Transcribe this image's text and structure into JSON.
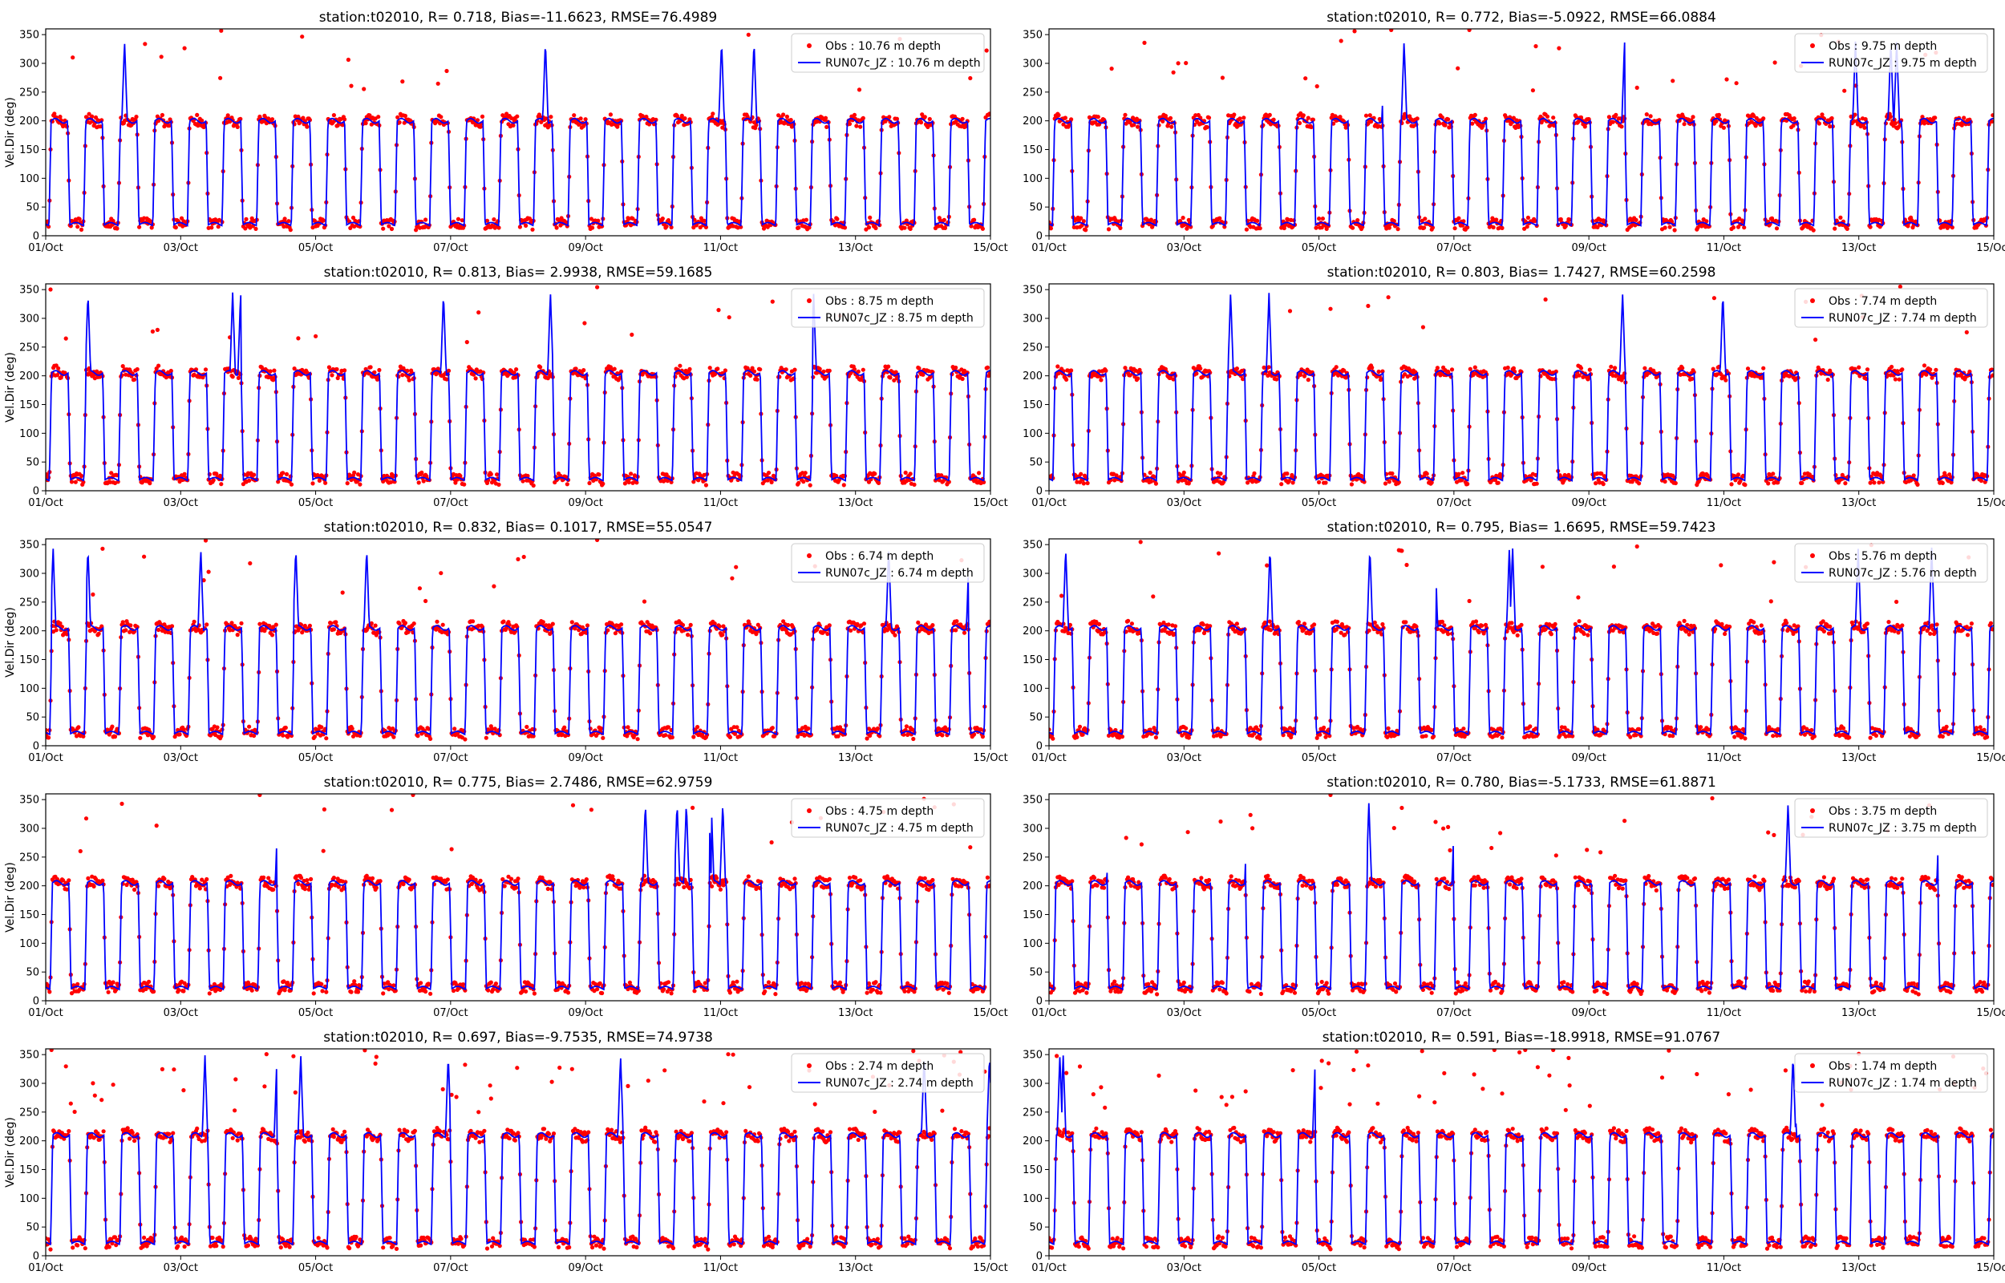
{
  "colors": {
    "obs": "#ff0000",
    "model": "#0000ff"
  },
  "chart_data": [
    {
      "type": "scatter+line",
      "title": "station:t02010, R= 0.718, Bias=-11.6623, RMSE=76.4989",
      "ylabel": "Vel.Dir (deg)",
      "xlabel": "",
      "ylim": [
        0,
        360
      ],
      "xlim": [
        "01/Oct",
        "15/Oct"
      ],
      "x_tick_labels": [
        "01/Oct",
        "03/Oct",
        "05/Oct",
        "07/Oct",
        "09/Oct",
        "11/Oct",
        "13/Oct",
        "15/Oct"
      ],
      "y_tick_labels": [
        "0",
        "50",
        "100",
        "150",
        "200",
        "250",
        "300",
        "350"
      ],
      "legend_position": "top-right",
      "series": [
        {
          "name": "Obs : 10.76 m depth",
          "kind": "markers"
        },
        {
          "name": "RUN07c_JZ : 10.76 m depth",
          "kind": "line"
        }
      ],
      "flood_direction_deg": 200,
      "ebb_direction_deg": 20
    },
    {
      "type": "scatter+line",
      "title": "station:t02010, R= 0.772, Bias=-5.0922, RMSE=66.0884",
      "ylabel": "",
      "xlabel": "",
      "ylim": [
        0,
        360
      ],
      "xlim": [
        "01/Oct",
        "15/Oct"
      ],
      "x_tick_labels": [
        "01/Oct",
        "03/Oct",
        "05/Oct",
        "07/Oct",
        "09/Oct",
        "11/Oct",
        "13/Oct",
        "15/Oct"
      ],
      "y_tick_labels": [
        "0",
        "50",
        "100",
        "150",
        "200",
        "250",
        "300",
        "350"
      ],
      "legend_position": "top-right",
      "series": [
        {
          "name": "Obs : 9.75 m depth",
          "kind": "markers"
        },
        {
          "name": "RUN07c_JZ : 9.75 m depth",
          "kind": "line"
        }
      ],
      "flood_direction_deg": 200,
      "ebb_direction_deg": 20
    },
    {
      "type": "scatter+line",
      "title": "station:t02010, R= 0.813, Bias= 2.9938, RMSE=59.1685",
      "ylabel": "Vel.Dir (deg)",
      "xlabel": "",
      "ylim": [
        0,
        360
      ],
      "xlim": [
        "01/Oct",
        "15/Oct"
      ],
      "x_tick_labels": [
        "01/Oct",
        "03/Oct",
        "05/Oct",
        "07/Oct",
        "09/Oct",
        "11/Oct",
        "13/Oct",
        "15/Oct"
      ],
      "y_tick_labels": [
        "0",
        "50",
        "100",
        "150",
        "200",
        "250",
        "300",
        "350"
      ],
      "legend_position": "top-right",
      "series": [
        {
          "name": "Obs : 8.75 m depth",
          "kind": "markers"
        },
        {
          "name": "RUN07c_JZ : 8.75 m depth",
          "kind": "line"
        }
      ],
      "flood_direction_deg": 205,
      "ebb_direction_deg": 20
    },
    {
      "type": "scatter+line",
      "title": "station:t02010, R= 0.803, Bias= 1.7427, RMSE=60.2598",
      "ylabel": "",
      "xlabel": "",
      "ylim": [
        0,
        360
      ],
      "xlim": [
        "01/Oct",
        "15/Oct"
      ],
      "x_tick_labels": [
        "01/Oct",
        "03/Oct",
        "05/Oct",
        "07/Oct",
        "09/Oct",
        "11/Oct",
        "13/Oct",
        "15/Oct"
      ],
      "y_tick_labels": [
        "0",
        "50",
        "100",
        "150",
        "200",
        "250",
        "300",
        "350"
      ],
      "legend_position": "top-right",
      "series": [
        {
          "name": "Obs : 7.74 m depth",
          "kind": "markers"
        },
        {
          "name": "RUN07c_JZ : 7.74 m depth",
          "kind": "line"
        }
      ],
      "flood_direction_deg": 205,
      "ebb_direction_deg": 20
    },
    {
      "type": "scatter+line",
      "title": "station:t02010, R= 0.832, Bias= 0.1017, RMSE=55.0547",
      "ylabel": "Vel.Dir (deg)",
      "xlabel": "",
      "ylim": [
        0,
        360
      ],
      "xlim": [
        "01/Oct",
        "15/Oct"
      ],
      "x_tick_labels": [
        "01/Oct",
        "03/Oct",
        "05/Oct",
        "07/Oct",
        "09/Oct",
        "11/Oct",
        "13/Oct",
        "15/Oct"
      ],
      "y_tick_labels": [
        "0",
        "50",
        "100",
        "150",
        "200",
        "250",
        "300",
        "350"
      ],
      "legend_position": "top-right",
      "series": [
        {
          "name": "Obs : 6.74 m depth",
          "kind": "markers"
        },
        {
          "name": "RUN07c_JZ : 6.74 m depth",
          "kind": "line"
        }
      ],
      "flood_direction_deg": 205,
      "ebb_direction_deg": 22
    },
    {
      "type": "scatter+line",
      "title": "station:t02010, R= 0.795, Bias= 1.6695, RMSE=59.7423",
      "ylabel": "",
      "xlabel": "",
      "ylim": [
        0,
        360
      ],
      "xlim": [
        "01/Oct",
        "15/Oct"
      ],
      "x_tick_labels": [
        "01/Oct",
        "03/Oct",
        "05/Oct",
        "07/Oct",
        "09/Oct",
        "11/Oct",
        "13/Oct",
        "15/Oct"
      ],
      "y_tick_labels": [
        "0",
        "50",
        "100",
        "150",
        "200",
        "250",
        "300",
        "350"
      ],
      "legend_position": "top-right",
      "series": [
        {
          "name": "Obs : 5.76 m depth",
          "kind": "markers"
        },
        {
          "name": "RUN07c_JZ : 5.76 m depth",
          "kind": "line"
        }
      ],
      "flood_direction_deg": 205,
      "ebb_direction_deg": 22
    },
    {
      "type": "scatter+line",
      "title": "station:t02010, R= 0.775, Bias= 2.7486, RMSE=62.9759",
      "ylabel": "Vel.Dir (deg)",
      "xlabel": "",
      "ylim": [
        0,
        360
      ],
      "xlim": [
        "01/Oct",
        "15/Oct"
      ],
      "x_tick_labels": [
        "01/Oct",
        "03/Oct",
        "05/Oct",
        "07/Oct",
        "09/Oct",
        "11/Oct",
        "13/Oct",
        "15/Oct"
      ],
      "y_tick_labels": [
        "0",
        "50",
        "100",
        "150",
        "200",
        "250",
        "300",
        "350"
      ],
      "legend_position": "top-right",
      "series": [
        {
          "name": "Obs : 4.75 m depth",
          "kind": "markers"
        },
        {
          "name": "RUN07c_JZ : 4.75 m depth",
          "kind": "line"
        }
      ],
      "flood_direction_deg": 205,
      "ebb_direction_deg": 22
    },
    {
      "type": "scatter+line",
      "title": "station:t02010, R= 0.780, Bias=-5.1733, RMSE=61.8871",
      "ylabel": "",
      "xlabel": "",
      "ylim": [
        0,
        360
      ],
      "xlim": [
        "01/Oct",
        "15/Oct"
      ],
      "x_tick_labels": [
        "01/Oct",
        "03/Oct",
        "05/Oct",
        "07/Oct",
        "09/Oct",
        "11/Oct",
        "13/Oct",
        "15/Oct"
      ],
      "y_tick_labels": [
        "0",
        "50",
        "100",
        "150",
        "200",
        "250",
        "300",
        "350"
      ],
      "legend_position": "top-right",
      "series": [
        {
          "name": "Obs : 3.75 m depth",
          "kind": "markers"
        },
        {
          "name": "RUN07c_JZ : 3.75 m depth",
          "kind": "line"
        }
      ],
      "flood_direction_deg": 205,
      "ebb_direction_deg": 22
    },
    {
      "type": "scatter+line",
      "title": "station:t02010, R= 0.697, Bias=-9.7535, RMSE=74.9738",
      "ylabel": "Vel.Dir (deg)",
      "xlabel": "",
      "ylim": [
        0,
        360
      ],
      "xlim": [
        "01/Oct",
        "15/Oct"
      ],
      "x_tick_labels": [
        "01/Oct",
        "03/Oct",
        "05/Oct",
        "07/Oct",
        "09/Oct",
        "11/Oct",
        "13/Oct",
        "15/Oct"
      ],
      "y_tick_labels": [
        "0",
        "50",
        "100",
        "150",
        "200",
        "250",
        "300",
        "350"
      ],
      "legend_position": "top-right",
      "series": [
        {
          "name": "Obs : 2.74 m depth",
          "kind": "markers"
        },
        {
          "name": "RUN07c_JZ : 2.74 m depth",
          "kind": "line"
        }
      ],
      "flood_direction_deg": 210,
      "ebb_direction_deg": 22
    },
    {
      "type": "scatter+line",
      "title": "station:t02010, R= 0.591, Bias=-18.9918, RMSE=91.0767",
      "ylabel": "",
      "xlabel": "",
      "ylim": [
        0,
        360
      ],
      "xlim": [
        "01/Oct",
        "15/Oct"
      ],
      "x_tick_labels": [
        "01/Oct",
        "03/Oct",
        "05/Oct",
        "07/Oct",
        "09/Oct",
        "11/Oct",
        "13/Oct",
        "15/Oct"
      ],
      "y_tick_labels": [
        "0",
        "50",
        "100",
        "150",
        "200",
        "250",
        "300",
        "350"
      ],
      "legend_position": "top-right",
      "series": [
        {
          "name": "Obs : 1.74 m depth",
          "kind": "markers"
        },
        {
          "name": "RUN07c_JZ : 1.74 m depth",
          "kind": "line"
        }
      ],
      "flood_direction_deg": 210,
      "ebb_direction_deg": 22
    }
  ]
}
